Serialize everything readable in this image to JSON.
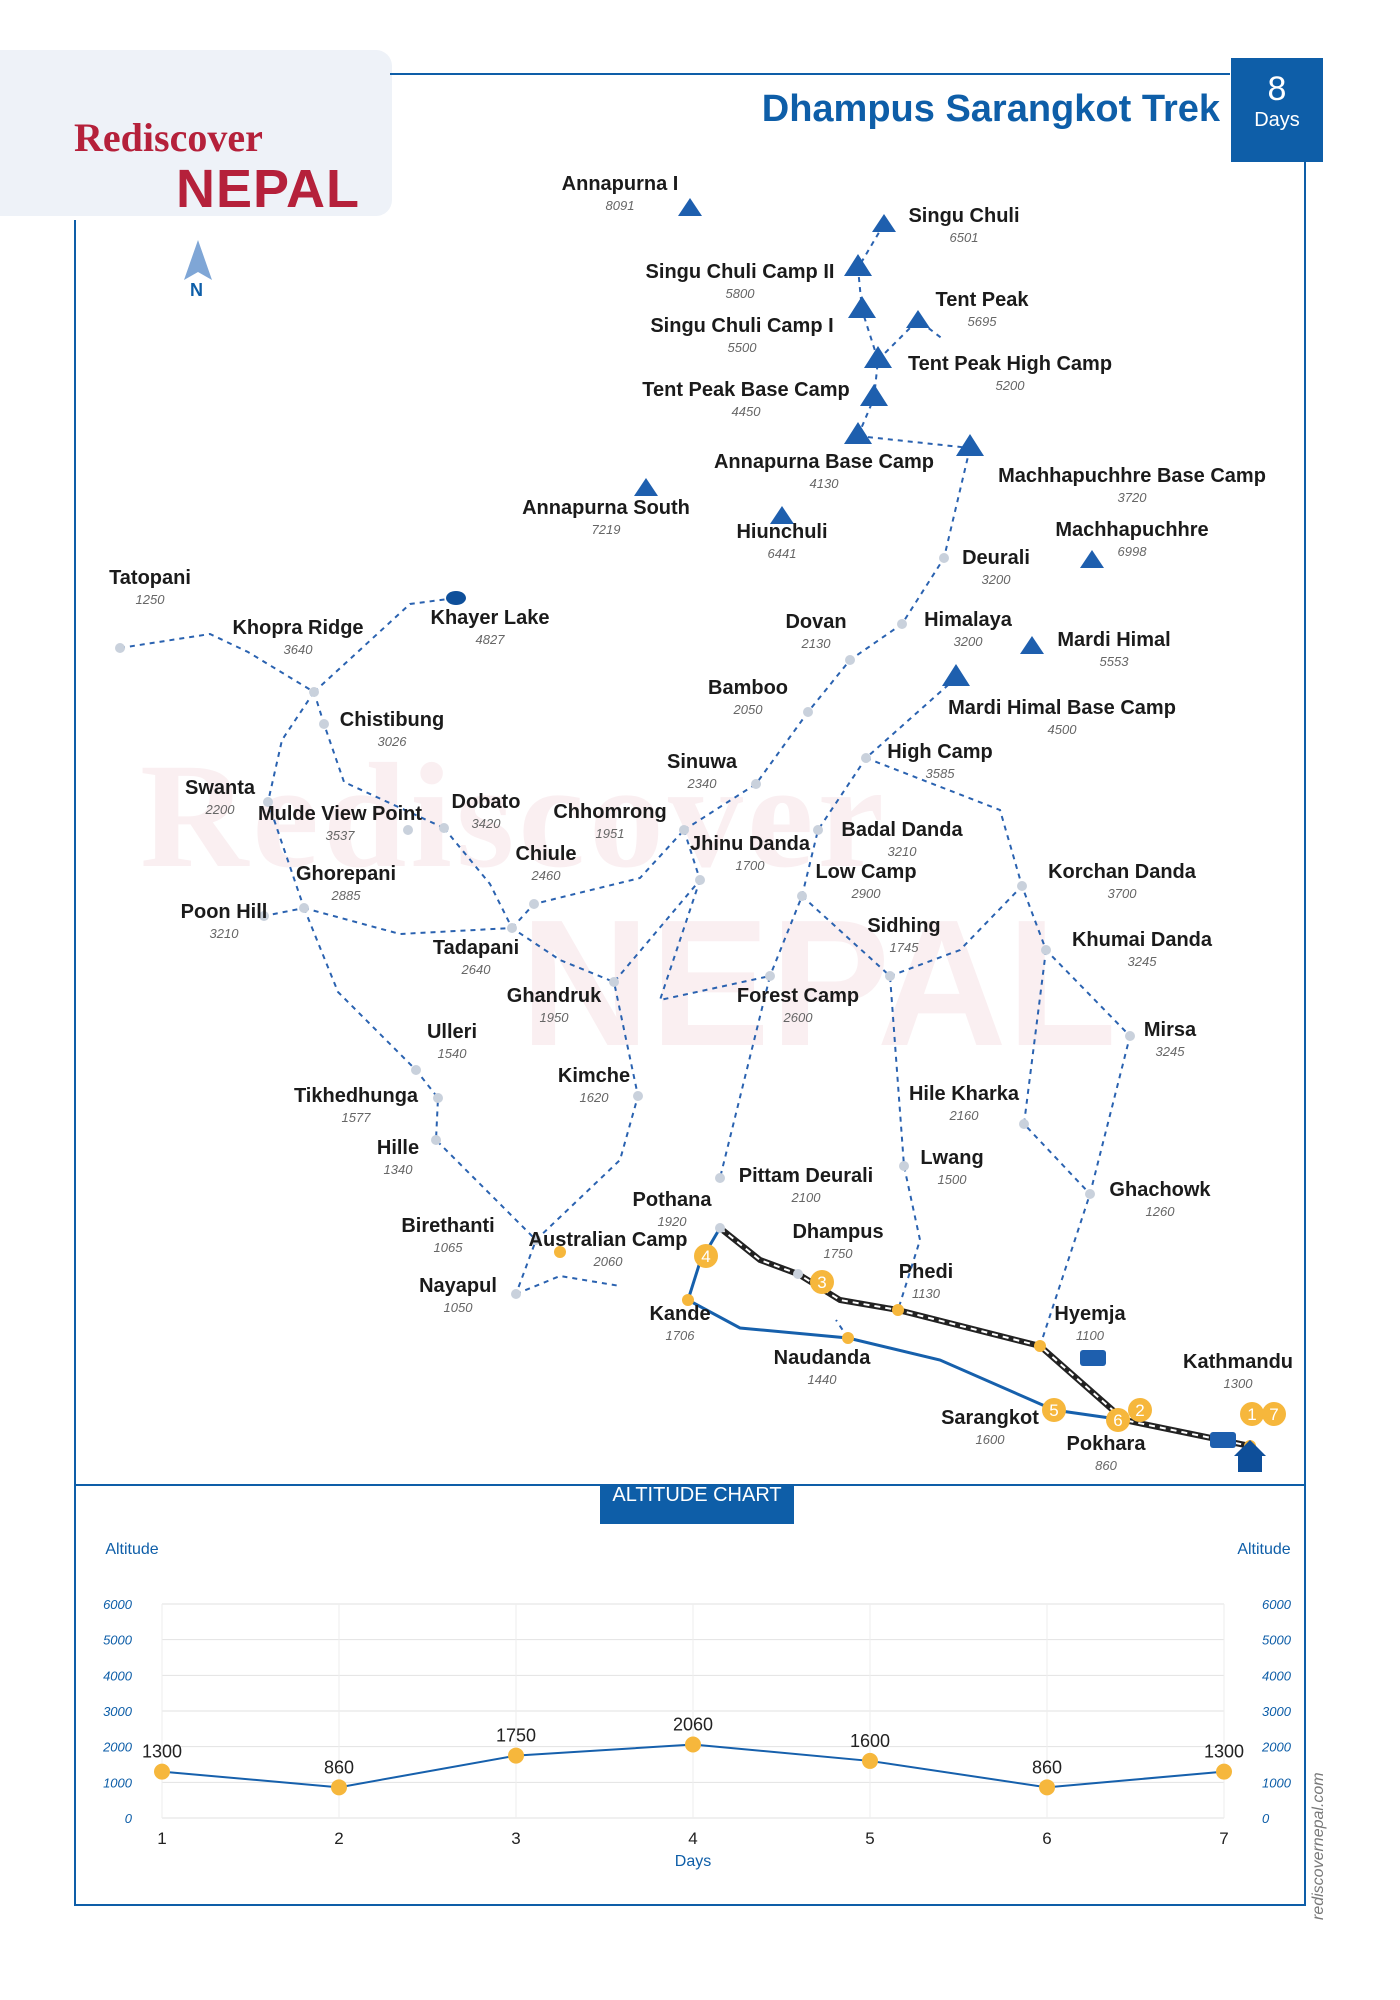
{
  "header": {
    "brand_line1": "Rediscover",
    "brand_line2": "NEPAL",
    "title": "Dhampus Sarangkot Trek",
    "days_number": "8",
    "days_label": "Days",
    "north_label": "N",
    "website": "rediscovernepal.com"
  },
  "colors": {
    "brand_blue": "#0e5ea8",
    "brand_red": "#b5213b",
    "route_orange": "#f6b73c",
    "trail_blue": "#2a62b0",
    "node_grey": "#c9d1dc"
  },
  "icons": [
    "compass-north-icon",
    "peak-icon",
    "camp-icon",
    "lake-icon",
    "bus-icon",
    "temple-icon"
  ],
  "map": {
    "places": [
      {
        "name": "Annapurna I",
        "alt": "8091",
        "type": "peak"
      },
      {
        "name": "Singu Chuli",
        "alt": "6501",
        "type": "peak"
      },
      {
        "name": "Singu Chuli Camp II",
        "alt": "5800",
        "type": "camp"
      },
      {
        "name": "Singu Chuli Camp I",
        "alt": "5500",
        "type": "camp"
      },
      {
        "name": "Tent Peak",
        "alt": "5695",
        "type": "peak"
      },
      {
        "name": "Tent Peak High Camp",
        "alt": "5200",
        "type": "camp"
      },
      {
        "name": "Tent Peak Base Camp",
        "alt": "4450",
        "type": "camp"
      },
      {
        "name": "Annapurna Base Camp",
        "alt": "4130",
        "type": "camp"
      },
      {
        "name": "Machhapuchhre Base Camp",
        "alt": "3720",
        "type": "camp"
      },
      {
        "name": "Annapurna South",
        "alt": "7219",
        "type": "peak"
      },
      {
        "name": "Hiunchuli",
        "alt": "6441",
        "type": "peak"
      },
      {
        "name": "Machhapuchhre",
        "alt": "6998",
        "type": "peak"
      },
      {
        "name": "Deurali",
        "alt": "3200",
        "type": "node"
      },
      {
        "name": "Tatopani",
        "alt": "1250",
        "type": "node"
      },
      {
        "name": "Khopra Ridge",
        "alt": "3640",
        "type": "node"
      },
      {
        "name": "Khayer Lake",
        "alt": "4827",
        "type": "lake"
      },
      {
        "name": "Dovan",
        "alt": "2130",
        "type": "node"
      },
      {
        "name": "Himalaya",
        "alt": "3200",
        "type": "node"
      },
      {
        "name": "Mardi Himal",
        "alt": "5553",
        "type": "peak"
      },
      {
        "name": "Bamboo",
        "alt": "2050",
        "type": "node"
      },
      {
        "name": "Mardi Himal Base Camp",
        "alt": "4500",
        "type": "camp"
      },
      {
        "name": "Chistibung",
        "alt": "3026",
        "type": "node"
      },
      {
        "name": "High Camp",
        "alt": "3585",
        "type": "node"
      },
      {
        "name": "Sinuwa",
        "alt": "2340",
        "type": "node"
      },
      {
        "name": "Swanta",
        "alt": "2200",
        "type": "node"
      },
      {
        "name": "Mulde View Point",
        "alt": "3537",
        "type": "node"
      },
      {
        "name": "Dobato",
        "alt": "3420",
        "type": "node"
      },
      {
        "name": "Chhomrong",
        "alt": "1951",
        "type": "node"
      },
      {
        "name": "Jhinu Danda",
        "alt": "1700",
        "type": "node"
      },
      {
        "name": "Badal Danda",
        "alt": "3210",
        "type": "node"
      },
      {
        "name": "Chiule",
        "alt": "2460",
        "type": "node"
      },
      {
        "name": "Ghorepani",
        "alt": "2885",
        "type": "node"
      },
      {
        "name": "Low Camp",
        "alt": "2900",
        "type": "node"
      },
      {
        "name": "Korchan Danda",
        "alt": "3700",
        "type": "node"
      },
      {
        "name": "Poon Hill",
        "alt": "3210",
        "type": "node"
      },
      {
        "name": "Sidhing",
        "alt": "1745",
        "type": "node"
      },
      {
        "name": "Tadapani",
        "alt": "2640",
        "type": "node"
      },
      {
        "name": "Khumai Danda",
        "alt": "3245",
        "type": "node"
      },
      {
        "name": "Ghandruk",
        "alt": "1950",
        "type": "node"
      },
      {
        "name": "Forest Camp",
        "alt": "2600",
        "type": "node"
      },
      {
        "name": "Ulleri",
        "alt": "1540",
        "type": "node"
      },
      {
        "name": "Mirsa",
        "alt": "3245",
        "type": "node"
      },
      {
        "name": "Kimche",
        "alt": "1620",
        "type": "node"
      },
      {
        "name": "Tikhedhunga",
        "alt": "1577",
        "type": "node"
      },
      {
        "name": "Hile Kharka",
        "alt": "2160",
        "type": "node"
      },
      {
        "name": "Hille",
        "alt": "1340",
        "type": "node"
      },
      {
        "name": "Lwang",
        "alt": "1500",
        "type": "node"
      },
      {
        "name": "Pittam Deurali",
        "alt": "2100",
        "type": "node"
      },
      {
        "name": "Ghachowk",
        "alt": "1260",
        "type": "node"
      },
      {
        "name": "Pothana",
        "alt": "1920",
        "type": "node"
      },
      {
        "name": "Birethanti",
        "alt": "1065",
        "type": "node"
      },
      {
        "name": "Dhampus",
        "alt": "1750",
        "type": "node"
      },
      {
        "name": "Australian Camp",
        "alt": "2060",
        "type": "route"
      },
      {
        "name": "Phedi",
        "alt": "1130",
        "type": "route"
      },
      {
        "name": "Nayapul",
        "alt": "1050",
        "type": "node"
      },
      {
        "name": "Kande",
        "alt": "1706",
        "type": "route"
      },
      {
        "name": "Hyemja",
        "alt": "1100",
        "type": "route"
      },
      {
        "name": "Naudanda",
        "alt": "1440",
        "type": "route"
      },
      {
        "name": "Kathmandu",
        "alt": "1300",
        "type": "route"
      },
      {
        "name": "Sarangkot",
        "alt": "1600",
        "type": "route"
      },
      {
        "name": "Pokhara",
        "alt": "860",
        "type": "route"
      }
    ],
    "day_markers": [
      "4",
      "3",
      "5",
      "6",
      "2",
      "1",
      "7"
    ]
  },
  "chart_data": {
    "type": "line",
    "title": "ALTITUDE CHART",
    "xlabel": "Days",
    "ylabel": "Altitude",
    "ylabel_right": "Altitude",
    "x": [
      1,
      2,
      3,
      4,
      5,
      6,
      7
    ],
    "y_ticks": [
      0,
      1000,
      2000,
      3000,
      4000,
      5000,
      6000
    ],
    "ylim": [
      0,
      6000
    ],
    "grid": true,
    "series": [
      {
        "values": [
          1300,
          860,
          1750,
          2060,
          1600,
          860,
          1300
        ]
      }
    ]
  }
}
